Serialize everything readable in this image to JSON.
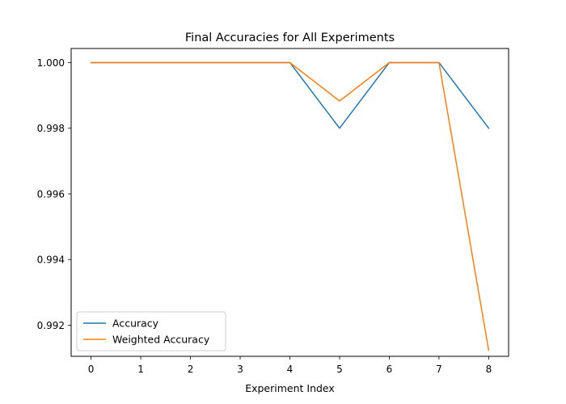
{
  "chart_data": {
    "type": "line",
    "title": "Final Accuracies for All Experiments",
    "xlabel": "Experiment Index",
    "ylabel": "",
    "x": [
      0,
      1,
      2,
      3,
      4,
      5,
      6,
      7,
      8
    ],
    "xlim": [
      -0.4,
      8.4
    ],
    "ylim": [
      0.99105,
      1.00043
    ],
    "xticks": [
      0,
      1,
      2,
      3,
      4,
      5,
      6,
      7,
      8
    ],
    "yticks": [
      0.992,
      0.994,
      0.996,
      0.998,
      1.0
    ],
    "ytick_labels": [
      "0.992",
      "0.994",
      "0.996",
      "0.998",
      "1.000"
    ],
    "grid": false,
    "legend_position": "lower left",
    "series": [
      {
        "name": "Accuracy",
        "color": "#1f77b4",
        "values": [
          1.0,
          1.0,
          1.0,
          1.0,
          1.0,
          0.998,
          1.0,
          1.0,
          0.998
        ]
      },
      {
        "name": "Weighted Accuracy",
        "color": "#ff7f0e",
        "values": [
          1.0,
          1.0,
          1.0,
          1.0,
          1.0,
          0.99883,
          1.0,
          1.0,
          0.99123
        ]
      }
    ]
  }
}
